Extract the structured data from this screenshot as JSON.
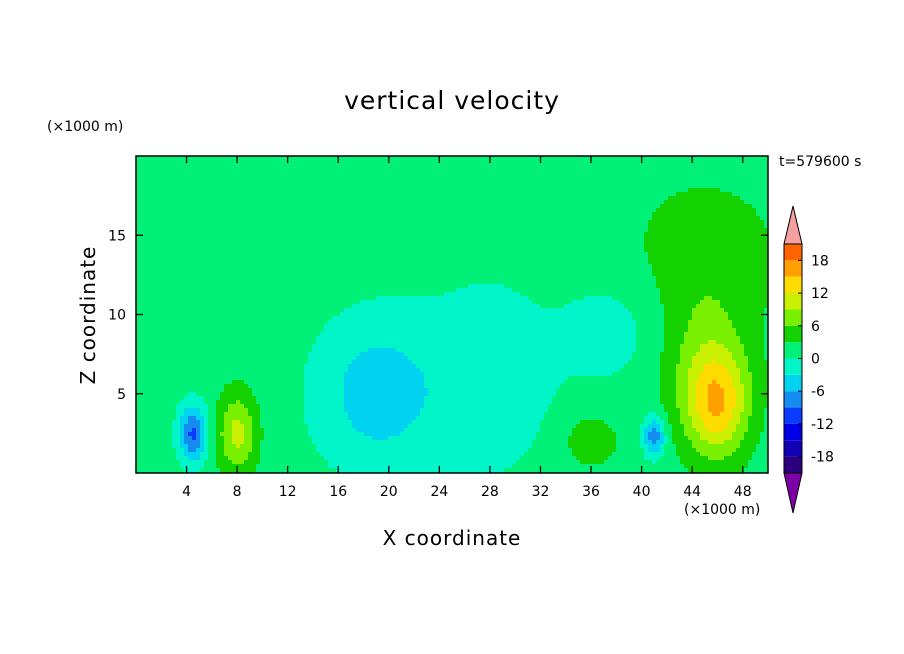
{
  "title": "vertical velocity",
  "time_label": "t=579600 s",
  "chart_data": {
    "type": "heatmap",
    "title": "vertical velocity",
    "xlabel": "X coordinate",
    "ylabel": "Z coordinate",
    "x_unit": "(×1000 m)",
    "y_unit": "(×1000 m)",
    "xlim": [
      0,
      50
    ],
    "ylim": [
      0,
      20
    ],
    "x_ticks": [
      4,
      8,
      12,
      16,
      20,
      24,
      28,
      32,
      36,
      40,
      44,
      48
    ],
    "y_ticks": [
      5,
      10,
      15
    ],
    "grid": false,
    "colorbar": {
      "levels": [
        -21,
        -18,
        -15,
        -12,
        -9,
        -6,
        -3,
        0,
        3,
        6,
        9,
        12,
        15,
        18,
        21
      ],
      "tick_labels": [
        18,
        12,
        6,
        0,
        -6,
        -12,
        -18
      ],
      "colors": [
        "#7b00a6",
        "#2b007f",
        "#1400b4",
        "#0000e6",
        "#0a3cff",
        "#148cf0",
        "#00d2f0",
        "#00f5c8",
        "#00f078",
        "#14d200",
        "#78f000",
        "#c8f000",
        "#ffdc00",
        "#ffa000",
        "#ff6400",
        "#f01e00",
        "#f5a0a0"
      ],
      "extend": "both"
    },
    "background_value": 1.5,
    "features": [
      {
        "name": "updraft",
        "x": 46,
        "z": 4.3,
        "peak": 11,
        "sx": 1.7,
        "sz": 2.3
      },
      {
        "name": "updraft",
        "x": 8,
        "z": 2.5,
        "peak": 8.5,
        "sx": 1.1,
        "sz": 1.8
      },
      {
        "name": "updraft",
        "x": 36,
        "z": 2.0,
        "peak": 4.5,
        "sx": 1.4,
        "sz": 1.1
      },
      {
        "name": "downdraft",
        "x": 4.5,
        "z": 2.5,
        "peak": -11,
        "sx": 0.8,
        "sz": 1.3
      },
      {
        "name": "downdraft",
        "x": 41,
        "z": 2.3,
        "peak": -10,
        "sx": 0.6,
        "sz": 0.9
      },
      {
        "name": "downdraft",
        "x": 19,
        "z": 5,
        "peak": -6,
        "sx": 3.5,
        "sz": 3.5
      },
      {
        "name": "downdraft",
        "x": 28,
        "z": 6,
        "peak": -3,
        "sx": 4,
        "sz": 5
      },
      {
        "name": "downdraft",
        "x": 38,
        "z": 9,
        "peak": -2.8,
        "sx": 3,
        "sz": 2.5
      },
      {
        "name": "updraft",
        "x": 45,
        "z": 14,
        "peak": 2.8,
        "sx": 4.5,
        "sz": 3.5
      },
      {
        "name": "updraft",
        "x": 45,
        "z": 7,
        "peak": 5,
        "sx": 2.6,
        "sz": 3.5
      }
    ]
  }
}
